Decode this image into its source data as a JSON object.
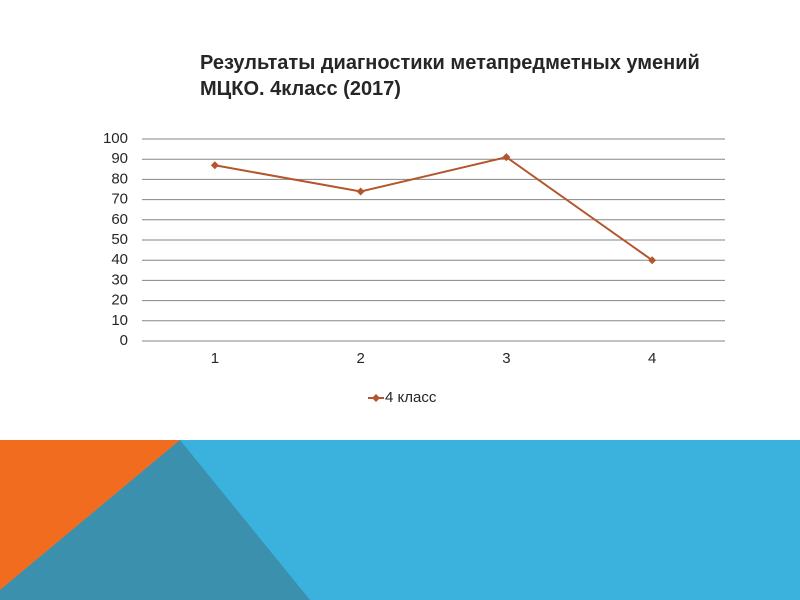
{
  "chart_data": {
    "type": "line",
    "title": "Результаты диагностики метапредметных умений МЦКО. 4класс  (2017)",
    "categories": [
      "1",
      "2",
      "3",
      "4"
    ],
    "series": [
      {
        "name": "4 класс",
        "color": "#b4552d",
        "values": [
          87,
          74,
          91,
          40
        ]
      }
    ],
    "ylim": [
      0,
      100
    ],
    "yticks": [
      0,
      10,
      20,
      30,
      40,
      50,
      60,
      70,
      80,
      90,
      100
    ],
    "grid": true,
    "legend": "bottom"
  }
}
